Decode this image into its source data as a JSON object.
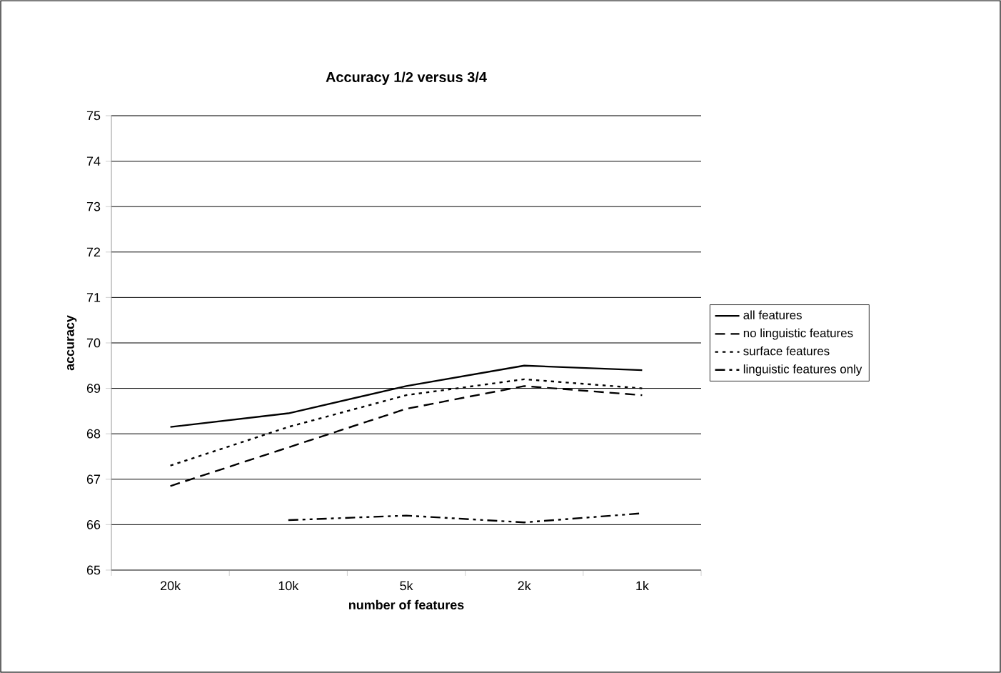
{
  "chart_data": {
    "type": "line",
    "title": "Accuracy 1/2 versus 3/4",
    "xlabel": "number of features",
    "ylabel": "accuracy",
    "categories": [
      "20k",
      "10k",
      "5k",
      "2k",
      "1k"
    ],
    "series": [
      {
        "name": "all features",
        "color": "#000000",
        "line_style": "solid",
        "values": [
          68.15,
          68.45,
          69.05,
          69.5,
          69.4
        ]
      },
      {
        "name": "no linguistic features",
        "color": "#000000",
        "line_style": "dashed",
        "values": [
          66.85,
          67.7,
          68.55,
          69.05,
          68.85
        ]
      },
      {
        "name": "surface features",
        "color": "#000000",
        "line_style": "dotted",
        "values": [
          67.3,
          68.15,
          68.85,
          69.2,
          69.0
        ]
      },
      {
        "name": "linguistic features only",
        "color": "#000000",
        "line_style": "dashdotdotted",
        "values": [
          null,
          66.1,
          66.2,
          66.05,
          66.25
        ]
      }
    ],
    "ylim": [
      65,
      75
    ],
    "yticks": [
      65,
      66,
      67,
      68,
      69,
      70,
      71,
      72,
      73,
      74,
      75
    ],
    "grid": "y",
    "legend": "right",
    "marker": "none"
  }
}
